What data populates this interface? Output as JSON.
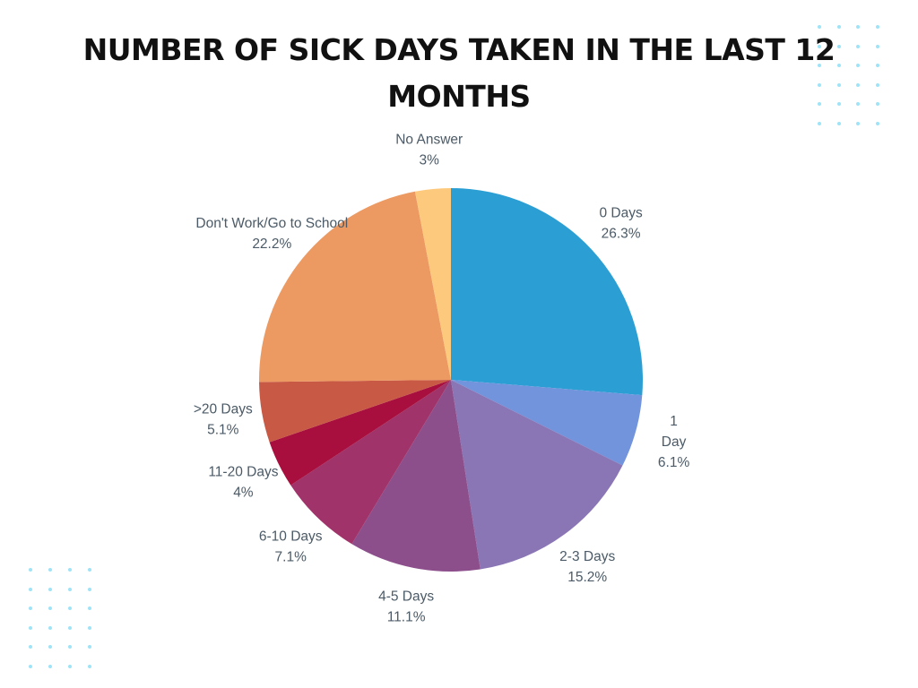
{
  "chart_data": {
    "type": "pie",
    "title": "NUMBER OF SICK DAYS TAKEN IN THE LAST 12 MONTHS",
    "slices": [
      {
        "label": "0 Days",
        "value": 26.3,
        "value_label": "26.3%",
        "color": "#2b9fd4"
      },
      {
        "label": "1 Day",
        "value": 6.1,
        "value_label": "6.1%",
        "color": "#7294dc"
      },
      {
        "label": "2-3 Days",
        "value": 15.2,
        "value_label": "15.2%",
        "color": "#8b76b5"
      },
      {
        "label": "4-5 Days",
        "value": 11.1,
        "value_label": "11.1%",
        "color": "#8c4f8c"
      },
      {
        "label": "6-10 Days",
        "value": 7.1,
        "value_label": "7.1%",
        "color": "#a0336a"
      },
      {
        "label": "11-20 Days",
        "value": 4,
        "value_label": "4%",
        "color": "#a80e3e"
      },
      {
        "label": ">20 Days",
        "value": 5.1,
        "value_label": "5.1%",
        "color": "#c85a45"
      },
      {
        "label": "Don't Work/Go to School",
        "value": 22.2,
        "value_label": "22.2%",
        "color": "#ec9962"
      },
      {
        "label": "No Answer",
        "value": 3,
        "value_label": "3%",
        "color": "#fdca7d"
      }
    ]
  },
  "decor": {
    "dot_color": "#9ee3f7"
  }
}
